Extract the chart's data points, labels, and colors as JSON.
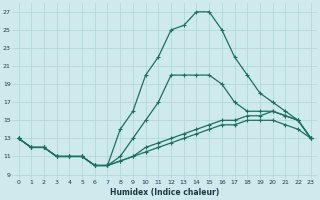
{
  "xlabel": "Humidex (Indice chaleur)",
  "bg_color": "#ceeaed",
  "grid_color": "#add4d8",
  "line_color": "#1a7060",
  "xlim": [
    -0.5,
    23.5
  ],
  "ylim": [
    8.5,
    28
  ],
  "yticks": [
    9,
    11,
    13,
    15,
    17,
    19,
    21,
    23,
    25,
    27
  ],
  "xticks": [
    0,
    1,
    2,
    3,
    4,
    5,
    6,
    7,
    8,
    9,
    10,
    11,
    12,
    13,
    14,
    15,
    16,
    17,
    18,
    19,
    20,
    21,
    22,
    23
  ],
  "series": [
    {
      "x": [
        0,
        1,
        2,
        3,
        4,
        5,
        6,
        7,
        8,
        9,
        10,
        11,
        12,
        13,
        14,
        15,
        16,
        17,
        18,
        19,
        20,
        21,
        22,
        23
      ],
      "y": [
        13,
        12,
        12,
        11,
        11,
        11,
        10,
        10,
        14,
        16,
        20,
        22,
        25,
        25.5,
        27,
        27,
        25,
        22,
        20,
        18,
        17,
        16,
        15,
        13
      ]
    },
    {
      "x": [
        0,
        1,
        2,
        3,
        4,
        5,
        6,
        7,
        8,
        9,
        10,
        11,
        12,
        13,
        14,
        15,
        16,
        17,
        18,
        19,
        20,
        21,
        22,
        23
      ],
      "y": [
        13,
        12,
        12,
        11,
        11,
        11,
        10,
        10,
        11,
        13,
        15,
        17,
        20,
        20,
        20,
        20,
        19,
        17,
        16,
        16,
        16,
        15.5,
        15,
        13
      ]
    },
    {
      "x": [
        0,
        1,
        2,
        3,
        4,
        5,
        6,
        7,
        8,
        9,
        10,
        11,
        12,
        13,
        14,
        15,
        16,
        17,
        18,
        19,
        20,
        21,
        22,
        23
      ],
      "y": [
        13,
        12,
        12,
        11,
        11,
        11,
        10,
        10,
        10.5,
        11,
        12,
        12.5,
        13,
        13.5,
        14,
        14.5,
        15,
        15,
        15.5,
        15.5,
        16,
        15.5,
        15,
        13
      ]
    },
    {
      "x": [
        0,
        1,
        2,
        3,
        4,
        5,
        6,
        7,
        8,
        9,
        10,
        11,
        12,
        13,
        14,
        15,
        16,
        17,
        18,
        19,
        20,
        21,
        22,
        23
      ],
      "y": [
        13,
        12,
        12,
        11,
        11,
        11,
        10,
        10,
        10.5,
        11,
        11.5,
        12,
        12.5,
        13,
        13.5,
        14,
        14.5,
        14.5,
        15,
        15,
        15,
        14.5,
        14,
        13
      ]
    }
  ]
}
